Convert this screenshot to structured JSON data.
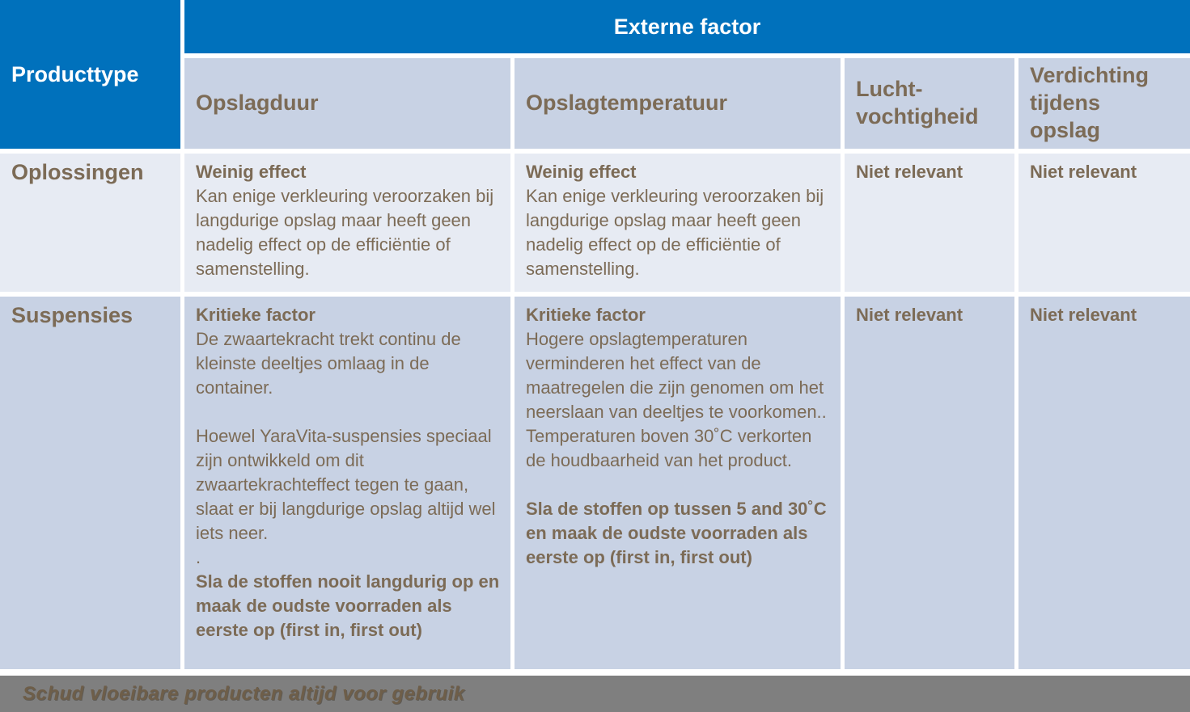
{
  "colors": {
    "header_blue": "#0071bc",
    "subheader_bg": "#c8d2e4",
    "row_light_bg": "#e7ebf3",
    "row_dark_bg": "#c8d2e4",
    "body_text_brown": "#7c6b56",
    "footer_gray": "#7f7f7f",
    "footer_text_brown": "#6e5e49"
  },
  "table": {
    "corner_label": "Producttype",
    "group_label": "Externe factor",
    "columns": [
      {
        "label": "Opslagduur"
      },
      {
        "label": "Opslagtemperatuur"
      },
      {
        "label": "Lucht-\nvochtigheid"
      },
      {
        "label": "Verdichting\ntijdens\nopslag"
      }
    ],
    "rows": [
      {
        "label": "Oplossingen",
        "cells": [
          [
            {
              "style": "bold",
              "text": "Weinig effect"
            },
            {
              "style": "normal",
              "text": "Kan enige verkleuring veroorzaken bij langdurige opslag maar heeft geen nadelig effect op de efficiëntie of samenstelling."
            }
          ],
          [
            {
              "style": "bold",
              "text": "Weinig effect"
            },
            {
              "style": "normal",
              "text": "Kan enige verkleuring veroorzaken bij langdurige opslag maar heeft geen nadelig effect op de efficiëntie of samenstelling."
            }
          ],
          [
            {
              "style": "bold",
              "text": "Niet relevant"
            }
          ],
          [
            {
              "style": "bold",
              "text": "Niet relevant"
            }
          ]
        ]
      },
      {
        "label": "Suspensies",
        "cells": [
          [
            {
              "style": "bold",
              "text": "Kritieke factor"
            },
            {
              "style": "normal",
              "text": "De zwaartekracht trekt continu de kleinste deeltjes omlaag in de container."
            },
            {
              "style": "spacer"
            },
            {
              "style": "normal",
              "text": "Hoewel YaraVita-suspensies speciaal zijn ontwikkeld om dit zwaartekrachteffect tegen te gaan, slaat er bij langdurige opslag altijd wel iets neer."
            },
            {
              "style": "normal",
              "text": "."
            },
            {
              "style": "bold",
              "text": "Sla de stoffen nooit langdurig op en maak de oudste voorraden als eerste op (first in, first out)"
            }
          ],
          [
            {
              "style": "bold",
              "text": "Kritieke factor"
            },
            {
              "style": "normal",
              "text": "Hogere opslagtemperaturen verminderen het effect van de maatregelen die zijn genomen om het neerslaan van deeltjes te voorkomen.."
            },
            {
              "style": "normal",
              "text": "Temperaturen boven 30˚C verkorten de houdbaarheid van het product."
            },
            {
              "style": "spacer"
            },
            {
              "style": "bold",
              "text": "Sla de stoffen op tussen 5 and 30˚C en maak de oudste voorraden als eerste op (first in, first out)"
            }
          ],
          [
            {
              "style": "bold",
              "text": "Niet relevant"
            }
          ],
          [
            {
              "style": "bold",
              "text": "Niet relevant"
            }
          ]
        ]
      }
    ]
  },
  "footer": {
    "note": "Schud vloeibare producten altijd voor gebruik"
  }
}
